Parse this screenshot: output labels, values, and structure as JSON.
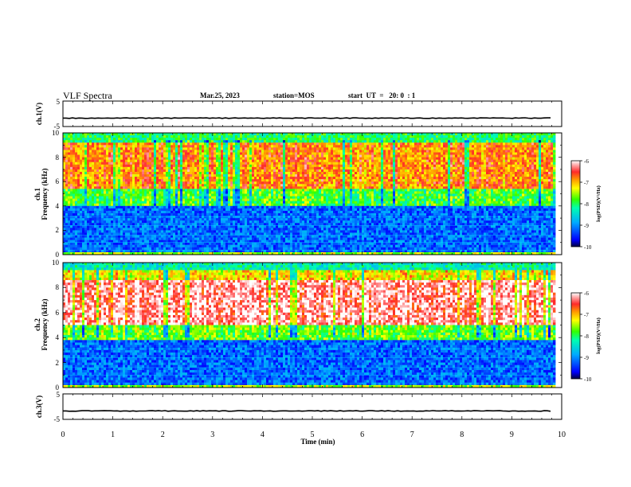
{
  "header": {
    "title": "VLF Spectra",
    "date": "Mar.25, 2023",
    "station": "station=MOS",
    "start": "start  UT  =   20: 0  : 1"
  },
  "chart_data": [
    {
      "type": "line",
      "panel": "ch1-waveform",
      "ylabel": "ch.1(V)",
      "yticks": [
        "5",
        "-5"
      ],
      "ylim": [
        -5,
        5
      ],
      "xlim": [
        0,
        10
      ],
      "series": [
        {
          "values_level": -1.7
        }
      ]
    },
    {
      "type": "heatmap",
      "panel": "ch1-spectrogram",
      "ylabel_top": "ch.1",
      "ylabel": "Frequency (kHz)",
      "yticks": [
        "0",
        "2",
        "4",
        "6",
        "8",
        "10"
      ],
      "ylim": [
        0,
        10
      ],
      "xlim": [
        0,
        10
      ],
      "data_end_min": 9.85,
      "bands": [
        {
          "from_khz": 0,
          "to_khz": 0.3,
          "level": -7.5
        },
        {
          "from_khz": 0.3,
          "to_khz": 4,
          "level": -9.2
        },
        {
          "from_khz": 4,
          "to_khz": 5.5,
          "level": -7.8
        },
        {
          "from_khz": 5.5,
          "to_khz": 9.2,
          "level": -6.8
        },
        {
          "from_khz": 9.2,
          "to_khz": 10,
          "level": -8.0
        }
      ],
      "colorbar": {
        "label": "log(PSD)(V²/Hz)",
        "ticks": [
          "-6",
          "-7",
          "-8",
          "-9",
          "-10"
        ],
        "range": [
          -10,
          -6
        ]
      }
    },
    {
      "type": "heatmap",
      "panel": "ch2-spectrogram",
      "ylabel_top": "ch.2",
      "ylabel": "Frequency (kHz)",
      "yticks": [
        "0",
        "2",
        "4",
        "6",
        "8",
        "10"
      ],
      "ylim": [
        0,
        10
      ],
      "xlim": [
        0,
        10
      ],
      "data_end_min": 9.85,
      "bands": [
        {
          "from_khz": 0,
          "to_khz": 0.3,
          "level": -7.5
        },
        {
          "from_khz": 0.3,
          "to_khz": 3.8,
          "level": -9.2
        },
        {
          "from_khz": 3.8,
          "to_khz": 5.0,
          "level": -7.7
        },
        {
          "from_khz": 5.0,
          "to_khz": 8.6,
          "level": -6.2
        },
        {
          "from_khz": 8.6,
          "to_khz": 9.4,
          "level": -7.2
        },
        {
          "from_khz": 9.4,
          "to_khz": 10,
          "level": -8.3
        }
      ],
      "colorbar": {
        "label": "log(PSD)(V²/Hz)",
        "ticks": [
          "-6",
          "-7",
          "-8",
          "-9",
          "-10"
        ],
        "range": [
          -10,
          -6
        ]
      }
    },
    {
      "type": "line",
      "panel": "ch3-waveform",
      "ylabel": "ch.3(V)",
      "yticks": [
        "5",
        "-5"
      ],
      "ylim": [
        -5,
        5
      ],
      "xlim": [
        0,
        10
      ],
      "series": [
        {
          "values_level": -1.7
        }
      ]
    }
  ],
  "xaxis": {
    "label": "Time (min)",
    "ticks": [
      "0",
      "1",
      "2",
      "3",
      "4",
      "5",
      "6",
      "7",
      "8",
      "9",
      "10"
    ]
  }
}
